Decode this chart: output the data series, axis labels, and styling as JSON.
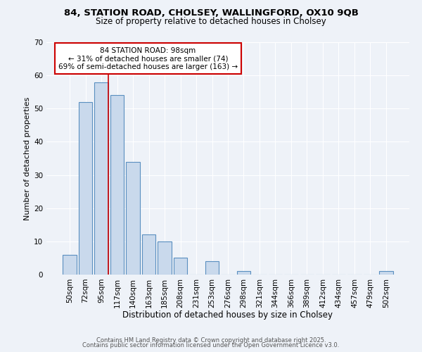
{
  "title1": "84, STATION ROAD, CHOLSEY, WALLINGFORD, OX10 9QB",
  "title2": "Size of property relative to detached houses in Cholsey",
  "xlabel": "Distribution of detached houses by size in Cholsey",
  "ylabel": "Number of detached properties",
  "bar_labels": [
    "50sqm",
    "72sqm",
    "95sqm",
    "117sqm",
    "140sqm",
    "163sqm",
    "185sqm",
    "208sqm",
    "231sqm",
    "253sqm",
    "276sqm",
    "298sqm",
    "321sqm",
    "344sqm",
    "366sqm",
    "389sqm",
    "412sqm",
    "434sqm",
    "457sqm",
    "479sqm",
    "502sqm"
  ],
  "bar_values": [
    6,
    52,
    58,
    54,
    34,
    12,
    10,
    5,
    0,
    4,
    0,
    1,
    0,
    0,
    0,
    0,
    0,
    0,
    0,
    0,
    1
  ],
  "bar_color": "#c9d9ec",
  "bar_edge_color": "#5a8fc0",
  "vline_color": "#cc0000",
  "vline_x_index": 2,
  "annotation_line1": "84 STATION ROAD: 98sqm",
  "annotation_line2": "← 31% of detached houses are smaller (74)",
  "annotation_line3": "69% of semi-detached houses are larger (163) →",
  "annotation_box_color": "#ffffff",
  "annotation_box_edge": "#cc0000",
  "ylim": [
    0,
    70
  ],
  "yticks": [
    0,
    10,
    20,
    30,
    40,
    50,
    60,
    70
  ],
  "background_color": "#eef2f8",
  "grid_color": "#ffffff",
  "footer1": "Contains HM Land Registry data © Crown copyright and database right 2025.",
  "footer2": "Contains public sector information licensed under the Open Government Licence v3.0."
}
